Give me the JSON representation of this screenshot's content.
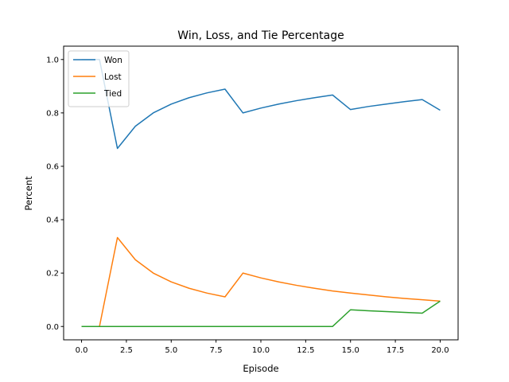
{
  "chart_data": {
    "type": "line",
    "title": "Win, Loss, and Tie Percentage",
    "xlabel": "Episode",
    "ylabel": "Percent",
    "xlim": [
      -1.0,
      21.0
    ],
    "ylim": [
      -0.05,
      1.05
    ],
    "xticks": [
      0.0,
      2.5,
      5.0,
      7.5,
      10.0,
      12.5,
      15.0,
      17.5,
      20.0
    ],
    "xtick_labels": [
      "0.0",
      "2.5",
      "5.0",
      "7.5",
      "10.0",
      "12.5",
      "15.0",
      "17.5",
      "20.0"
    ],
    "yticks": [
      0.0,
      0.2,
      0.4,
      0.6,
      0.8,
      1.0
    ],
    "ytick_labels": [
      "0.0",
      "0.2",
      "0.4",
      "0.6",
      "0.8",
      "1.0"
    ],
    "grid": false,
    "legend_position": "top-left",
    "x": [
      0,
      1,
      2,
      3,
      4,
      5,
      6,
      7,
      8,
      9,
      10,
      11,
      12,
      13,
      14,
      15,
      16,
      17,
      18,
      19,
      20
    ],
    "series": [
      {
        "name": "Won",
        "color": "#1f77b4",
        "values": [
          1.0,
          1.0,
          0.667,
          0.75,
          0.8,
          0.833,
          0.857,
          0.875,
          0.889,
          0.8,
          0.818,
          0.833,
          0.846,
          0.857,
          0.867,
          0.8125,
          0.824,
          0.833,
          0.842,
          0.85,
          0.81
        ]
      },
      {
        "name": "Lost",
        "color": "#ff7f0e",
        "values": [
          0.0,
          0.0,
          0.333,
          0.25,
          0.2,
          0.167,
          0.143,
          0.125,
          0.111,
          0.2,
          0.182,
          0.167,
          0.154,
          0.143,
          0.133,
          0.125,
          0.118,
          0.111,
          0.105,
          0.1,
          0.095
        ]
      },
      {
        "name": "Tied",
        "color": "#2ca02c",
        "values": [
          0.0,
          0.0,
          0.0,
          0.0,
          0.0,
          0.0,
          0.0,
          0.0,
          0.0,
          0.0,
          0.0,
          0.0,
          0.0,
          0.0,
          0.0,
          0.0625,
          0.059,
          0.056,
          0.053,
          0.05,
          0.095
        ]
      }
    ]
  }
}
